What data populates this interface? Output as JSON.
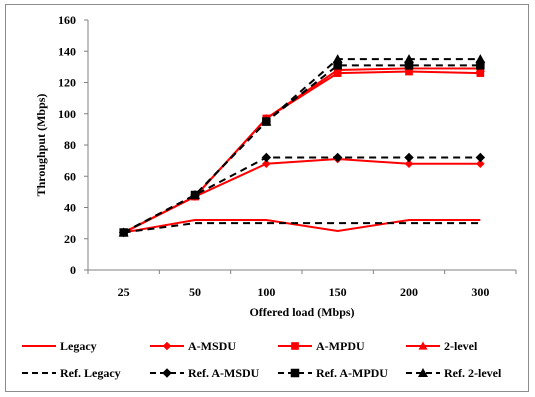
{
  "chart_data": {
    "type": "line",
    "title": "",
    "xlabel": "Offered load (Mbps)",
    "ylabel": "Throughput (Mbps)",
    "categories": [
      "25",
      "50",
      "100",
      "150",
      "200",
      "300"
    ],
    "ylim": [
      0,
      160
    ],
    "yticks": [
      0,
      20,
      40,
      60,
      80,
      100,
      120,
      140,
      160
    ],
    "grid": false,
    "legend_position": "bottom",
    "series": [
      {
        "name": "Legacy",
        "values": [
          24,
          32,
          32,
          25,
          32,
          32
        ],
        "color": "#ff0000",
        "dash": "solid",
        "marker": "none"
      },
      {
        "name": "A-MSDU",
        "values": [
          24,
          47,
          68,
          71,
          68,
          68
        ],
        "color": "#ff0000",
        "dash": "solid",
        "marker": "diamond"
      },
      {
        "name": "A-MPDU",
        "values": [
          24,
          47,
          97,
          126,
          127,
          126
        ],
        "color": "#ff0000",
        "dash": "solid",
        "marker": "square"
      },
      {
        "name": "2-level",
        "values": [
          24,
          47,
          97,
          128,
          129,
          129
        ],
        "color": "#ff0000",
        "dash": "solid",
        "marker": "triangle"
      },
      {
        "name": "Ref. Legacy",
        "values": [
          24,
          30,
          30,
          30,
          30,
          30
        ],
        "color": "#000000",
        "dash": "dashed",
        "marker": "none"
      },
      {
        "name": "Ref. A-MSDU",
        "values": [
          24,
          48,
          72,
          72,
          72,
          72
        ],
        "color": "#000000",
        "dash": "dashed",
        "marker": "diamond"
      },
      {
        "name": "Ref. A-MPDU",
        "values": [
          24,
          48,
          95,
          131,
          131,
          131
        ],
        "color": "#000000",
        "dash": "dashed",
        "marker": "square"
      },
      {
        "name": "Ref. 2-level",
        "values": [
          24,
          48,
          95,
          135,
          135,
          135
        ],
        "color": "#000000",
        "dash": "dashed",
        "marker": "triangle"
      }
    ]
  }
}
